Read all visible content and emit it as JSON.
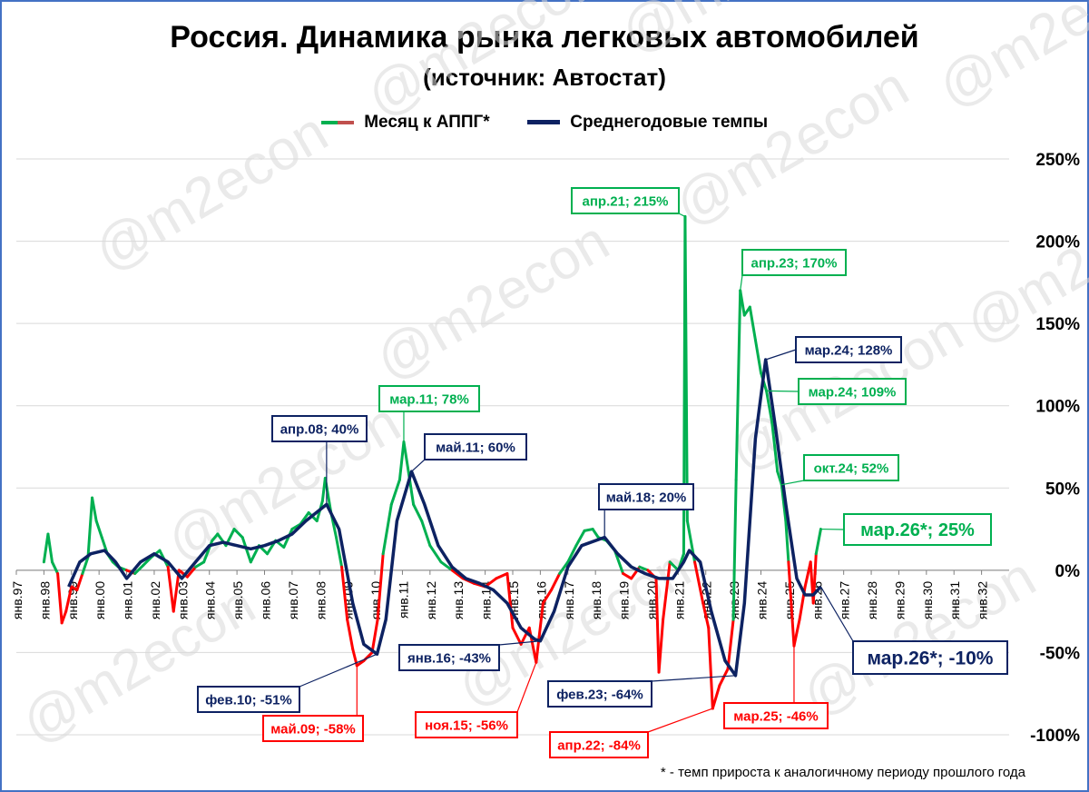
{
  "chart_data": {
    "type": "line",
    "title": "Россия. Динамика рынка легковых автомобилей",
    "subtitle": "(источник: Автостат)",
    "footnote": "* - темп прироста к аналогичному периоду прошлого года",
    "watermark": "@m2econ",
    "ylim": [
      -1.0,
      2.5
    ],
    "yticks": [
      "250%",
      "200%",
      "150%",
      "100%",
      "50%",
      "0%",
      "-50%",
      "-100%"
    ],
    "ytick_values": [
      2.5,
      2.0,
      1.5,
      1.0,
      0.5,
      0.0,
      -0.5,
      -1.0
    ],
    "x_range": [
      1997.0,
      2033.0
    ],
    "xticks": [
      "янв.97",
      "янв.98",
      "янв.99",
      "янв.00",
      "янв.01",
      "янв.02",
      "янв.03",
      "янв.04",
      "янв.05",
      "янв.06",
      "янв.07",
      "янв.08",
      "янв.09",
      "янв.10",
      "янв.11",
      "янв.12",
      "янв.13",
      "янв.14",
      "янв.15",
      "янв.16",
      "янв.17",
      "янв.18",
      "янв.19",
      "янв.20",
      "янв.21",
      "янв.22",
      "янв.23",
      "янв.24",
      "янв.25",
      "янв.26",
      "янв.27",
      "янв.28",
      "янв.29",
      "янв.30",
      "янв.31",
      "янв.32"
    ],
    "legend_position": "top-center",
    "grid": true,
    "series": [
      {
        "name": "Месяц к АППГ*",
        "color_pos": "#00b050",
        "color_neg": "#ff0000",
        "points": [
          [
            1998.0,
            0.05
          ],
          [
            1998.15,
            0.22
          ],
          [
            1998.3,
            0.05
          ],
          [
            1998.5,
            -0.02
          ],
          [
            1998.65,
            -0.32
          ],
          [
            1998.8,
            -0.25
          ],
          [
            1999.0,
            -0.1
          ],
          [
            1999.2,
            -0.12
          ],
          [
            1999.4,
            -0.02
          ],
          [
            1999.6,
            0.08
          ],
          [
            1999.75,
            0.44
          ],
          [
            1999.9,
            0.3
          ],
          [
            2000.1,
            0.2
          ],
          [
            2000.3,
            0.1
          ],
          [
            2000.5,
            0.05
          ],
          [
            2000.7,
            0.02
          ],
          [
            2001.0,
            0.0
          ],
          [
            2001.3,
            -0.02
          ],
          [
            2001.6,
            0.03
          ],
          [
            2001.9,
            0.08
          ],
          [
            2002.2,
            0.12
          ],
          [
            2002.5,
            0.02
          ],
          [
            2002.7,
            -0.25
          ],
          [
            2002.9,
            0.0
          ],
          [
            2003.2,
            -0.04
          ],
          [
            2003.5,
            0.02
          ],
          [
            2003.8,
            0.05
          ],
          [
            2004.1,
            0.18
          ],
          [
            2004.3,
            0.22
          ],
          [
            2004.6,
            0.15
          ],
          [
            2004.9,
            0.25
          ],
          [
            2005.2,
            0.2
          ],
          [
            2005.5,
            0.05
          ],
          [
            2005.8,
            0.15
          ],
          [
            2006.1,
            0.1
          ],
          [
            2006.4,
            0.18
          ],
          [
            2006.7,
            0.14
          ],
          [
            2007.0,
            0.25
          ],
          [
            2007.3,
            0.28
          ],
          [
            2007.6,
            0.35
          ],
          [
            2007.9,
            0.3
          ],
          [
            2008.1,
            0.42
          ],
          [
            2008.2,
            0.56
          ],
          [
            2008.4,
            0.36
          ],
          [
            2008.6,
            0.2
          ],
          [
            2008.8,
            0.02
          ],
          [
            2009.0,
            -0.3
          ],
          [
            2009.2,
            -0.48
          ],
          [
            2009.35,
            -0.58
          ],
          [
            2009.6,
            -0.55
          ],
          [
            2009.9,
            -0.5
          ],
          [
            2010.1,
            -0.3
          ],
          [
            2010.3,
            0.1
          ],
          [
            2010.6,
            0.4
          ],
          [
            2010.9,
            0.55
          ],
          [
            2011.05,
            0.78
          ],
          [
            2011.2,
            0.62
          ],
          [
            2011.4,
            0.4
          ],
          [
            2011.7,
            0.3
          ],
          [
            2012.0,
            0.15
          ],
          [
            2012.4,
            0.05
          ],
          [
            2012.8,
            0.0
          ],
          [
            2013.2,
            -0.05
          ],
          [
            2013.6,
            -0.08
          ],
          [
            2014.0,
            -0.1
          ],
          [
            2014.4,
            -0.05
          ],
          [
            2014.8,
            -0.02
          ],
          [
            2015.0,
            -0.35
          ],
          [
            2015.3,
            -0.45
          ],
          [
            2015.6,
            -0.35
          ],
          [
            2015.85,
            -0.56
          ],
          [
            2016.1,
            -0.2
          ],
          [
            2016.4,
            -0.12
          ],
          [
            2016.7,
            -0.02
          ],
          [
            2017.0,
            0.05
          ],
          [
            2017.3,
            0.15
          ],
          [
            2017.6,
            0.24
          ],
          [
            2017.9,
            0.25
          ],
          [
            2018.1,
            0.2
          ],
          [
            2018.4,
            0.18
          ],
          [
            2018.7,
            0.12
          ],
          [
            2019.0,
            -0.02
          ],
          [
            2019.3,
            -0.05
          ],
          [
            2019.6,
            0.02
          ],
          [
            2019.9,
            0.0
          ],
          [
            2020.2,
            -0.05
          ],
          [
            2020.3,
            -0.62
          ],
          [
            2020.45,
            -0.3
          ],
          [
            2020.7,
            0.05
          ],
          [
            2021.0,
            0.0
          ],
          [
            2021.2,
            0.1
          ],
          [
            2021.25,
            2.15
          ],
          [
            2021.33,
            0.3
          ],
          [
            2021.6,
            0.05
          ],
          [
            2021.9,
            -0.2
          ],
          [
            2022.1,
            -0.35
          ],
          [
            2022.25,
            -0.84
          ],
          [
            2022.5,
            -0.7
          ],
          [
            2022.8,
            -0.6
          ],
          [
            2023.0,
            -0.3
          ],
          [
            2023.1,
            0.55
          ],
          [
            2023.25,
            1.7
          ],
          [
            2023.4,
            1.55
          ],
          [
            2023.6,
            1.6
          ],
          [
            2023.8,
            1.4
          ],
          [
            2024.0,
            1.2
          ],
          [
            2024.2,
            1.09
          ],
          [
            2024.4,
            0.9
          ],
          [
            2024.6,
            0.6
          ],
          [
            2024.75,
            0.52
          ],
          [
            2024.9,
            0.3
          ],
          [
            2025.0,
            0.05
          ],
          [
            2025.2,
            -0.46
          ],
          [
            2025.4,
            -0.3
          ],
          [
            2025.6,
            -0.1
          ],
          [
            2025.8,
            0.05
          ],
          [
            2025.9,
            -0.2
          ],
          [
            2026.0,
            0.1
          ],
          [
            2026.17,
            0.25
          ]
        ]
      },
      {
        "name": "Среднегодовые темпы",
        "color": "#0d2262",
        "points": [
          [
            1998.9,
            -0.1
          ],
          [
            1999.3,
            0.05
          ],
          [
            1999.7,
            0.1
          ],
          [
            2000.2,
            0.12
          ],
          [
            2000.6,
            0.05
          ],
          [
            2001.0,
            -0.05
          ],
          [
            2001.5,
            0.05
          ],
          [
            2002.0,
            0.1
          ],
          [
            2002.5,
            0.05
          ],
          [
            2003.0,
            -0.05
          ],
          [
            2003.5,
            0.05
          ],
          [
            2004.0,
            0.15
          ],
          [
            2004.5,
            0.17
          ],
          [
            2005.0,
            0.15
          ],
          [
            2005.5,
            0.13
          ],
          [
            2006.0,
            0.15
          ],
          [
            2006.5,
            0.18
          ],
          [
            2007.0,
            0.22
          ],
          [
            2007.5,
            0.3
          ],
          [
            2008.25,
            0.4
          ],
          [
            2008.7,
            0.25
          ],
          [
            2009.2,
            -0.2
          ],
          [
            2009.6,
            -0.45
          ],
          [
            2010.08,
            -0.51
          ],
          [
            2010.4,
            -0.3
          ],
          [
            2010.8,
            0.3
          ],
          [
            2011.33,
            0.6
          ],
          [
            2011.8,
            0.4
          ],
          [
            2012.3,
            0.15
          ],
          [
            2012.8,
            0.02
          ],
          [
            2013.3,
            -0.05
          ],
          [
            2013.8,
            -0.08
          ],
          [
            2014.3,
            -0.12
          ],
          [
            2014.8,
            -0.2
          ],
          [
            2015.3,
            -0.35
          ],
          [
            2015.8,
            -0.42
          ],
          [
            2016.0,
            -0.43
          ],
          [
            2016.5,
            -0.25
          ],
          [
            2017.0,
            0.02
          ],
          [
            2017.5,
            0.15
          ],
          [
            2018.33,
            0.2
          ],
          [
            2018.8,
            0.1
          ],
          [
            2019.3,
            0.02
          ],
          [
            2019.8,
            -0.02
          ],
          [
            2020.3,
            -0.05
          ],
          [
            2020.8,
            -0.05
          ],
          [
            2021.2,
            0.05
          ],
          [
            2021.4,
            0.12
          ],
          [
            2021.8,
            0.05
          ],
          [
            2022.2,
            -0.25
          ],
          [
            2022.7,
            -0.55
          ],
          [
            2023.08,
            -0.64
          ],
          [
            2023.4,
            -0.2
          ],
          [
            2023.8,
            0.8
          ],
          [
            2024.17,
            1.28
          ],
          [
            2024.5,
            0.9
          ],
          [
            2024.9,
            0.4
          ],
          [
            2025.3,
            -0.05
          ],
          [
            2025.6,
            -0.15
          ],
          [
            2025.9,
            -0.15
          ],
          [
            2026.17,
            -0.1
          ]
        ]
      }
    ],
    "annotations_green": [
      {
        "text": "апр.21; 215%",
        "x": 2021.25,
        "y": 2.15
      },
      {
        "text": "апр.23; 170%",
        "x": 2023.25,
        "y": 1.7
      },
      {
        "text": "мар.11; 78%",
        "x": 2011.05,
        "y": 0.78
      },
      {
        "text": "мар.24; 109%",
        "x": 2024.2,
        "y": 1.09
      },
      {
        "text": "окт.24; 52%",
        "x": 2024.75,
        "y": 0.52
      },
      {
        "text": "мар.26*; 25%",
        "x": 2026.17,
        "y": 0.25
      }
    ],
    "annotations_navy": [
      {
        "text": "апр.08; 40%",
        "x": 2008.25,
        "y": 0.4
      },
      {
        "text": "май.11; 60%",
        "x": 2011.33,
        "y": 0.6
      },
      {
        "text": "май.18; 20%",
        "x": 2018.33,
        "y": 0.2
      },
      {
        "text": "мар.24; 128%",
        "x": 2024.17,
        "y": 1.28
      },
      {
        "text": "янв.16; -43%",
        "x": 2016.0,
        "y": -0.43
      },
      {
        "text": "фев.10; -51%",
        "x": 2010.08,
        "y": -0.51
      },
      {
        "text": "фев.23; -64%",
        "x": 2023.08,
        "y": -0.64
      },
      {
        "text": "мар.26*; -10%",
        "x": 2026.17,
        "y": -0.1
      }
    ],
    "annotations_red": [
      {
        "text": "май.09; -58%",
        "x": 2009.35,
        "y": -0.58
      },
      {
        "text": "ноя.15; -56%",
        "x": 2015.85,
        "y": -0.56
      },
      {
        "text": "апр.22; -84%",
        "x": 2022.25,
        "y": -0.84
      },
      {
        "text": "мар.25; -46%",
        "x": 2025.2,
        "y": -0.46
      }
    ]
  }
}
